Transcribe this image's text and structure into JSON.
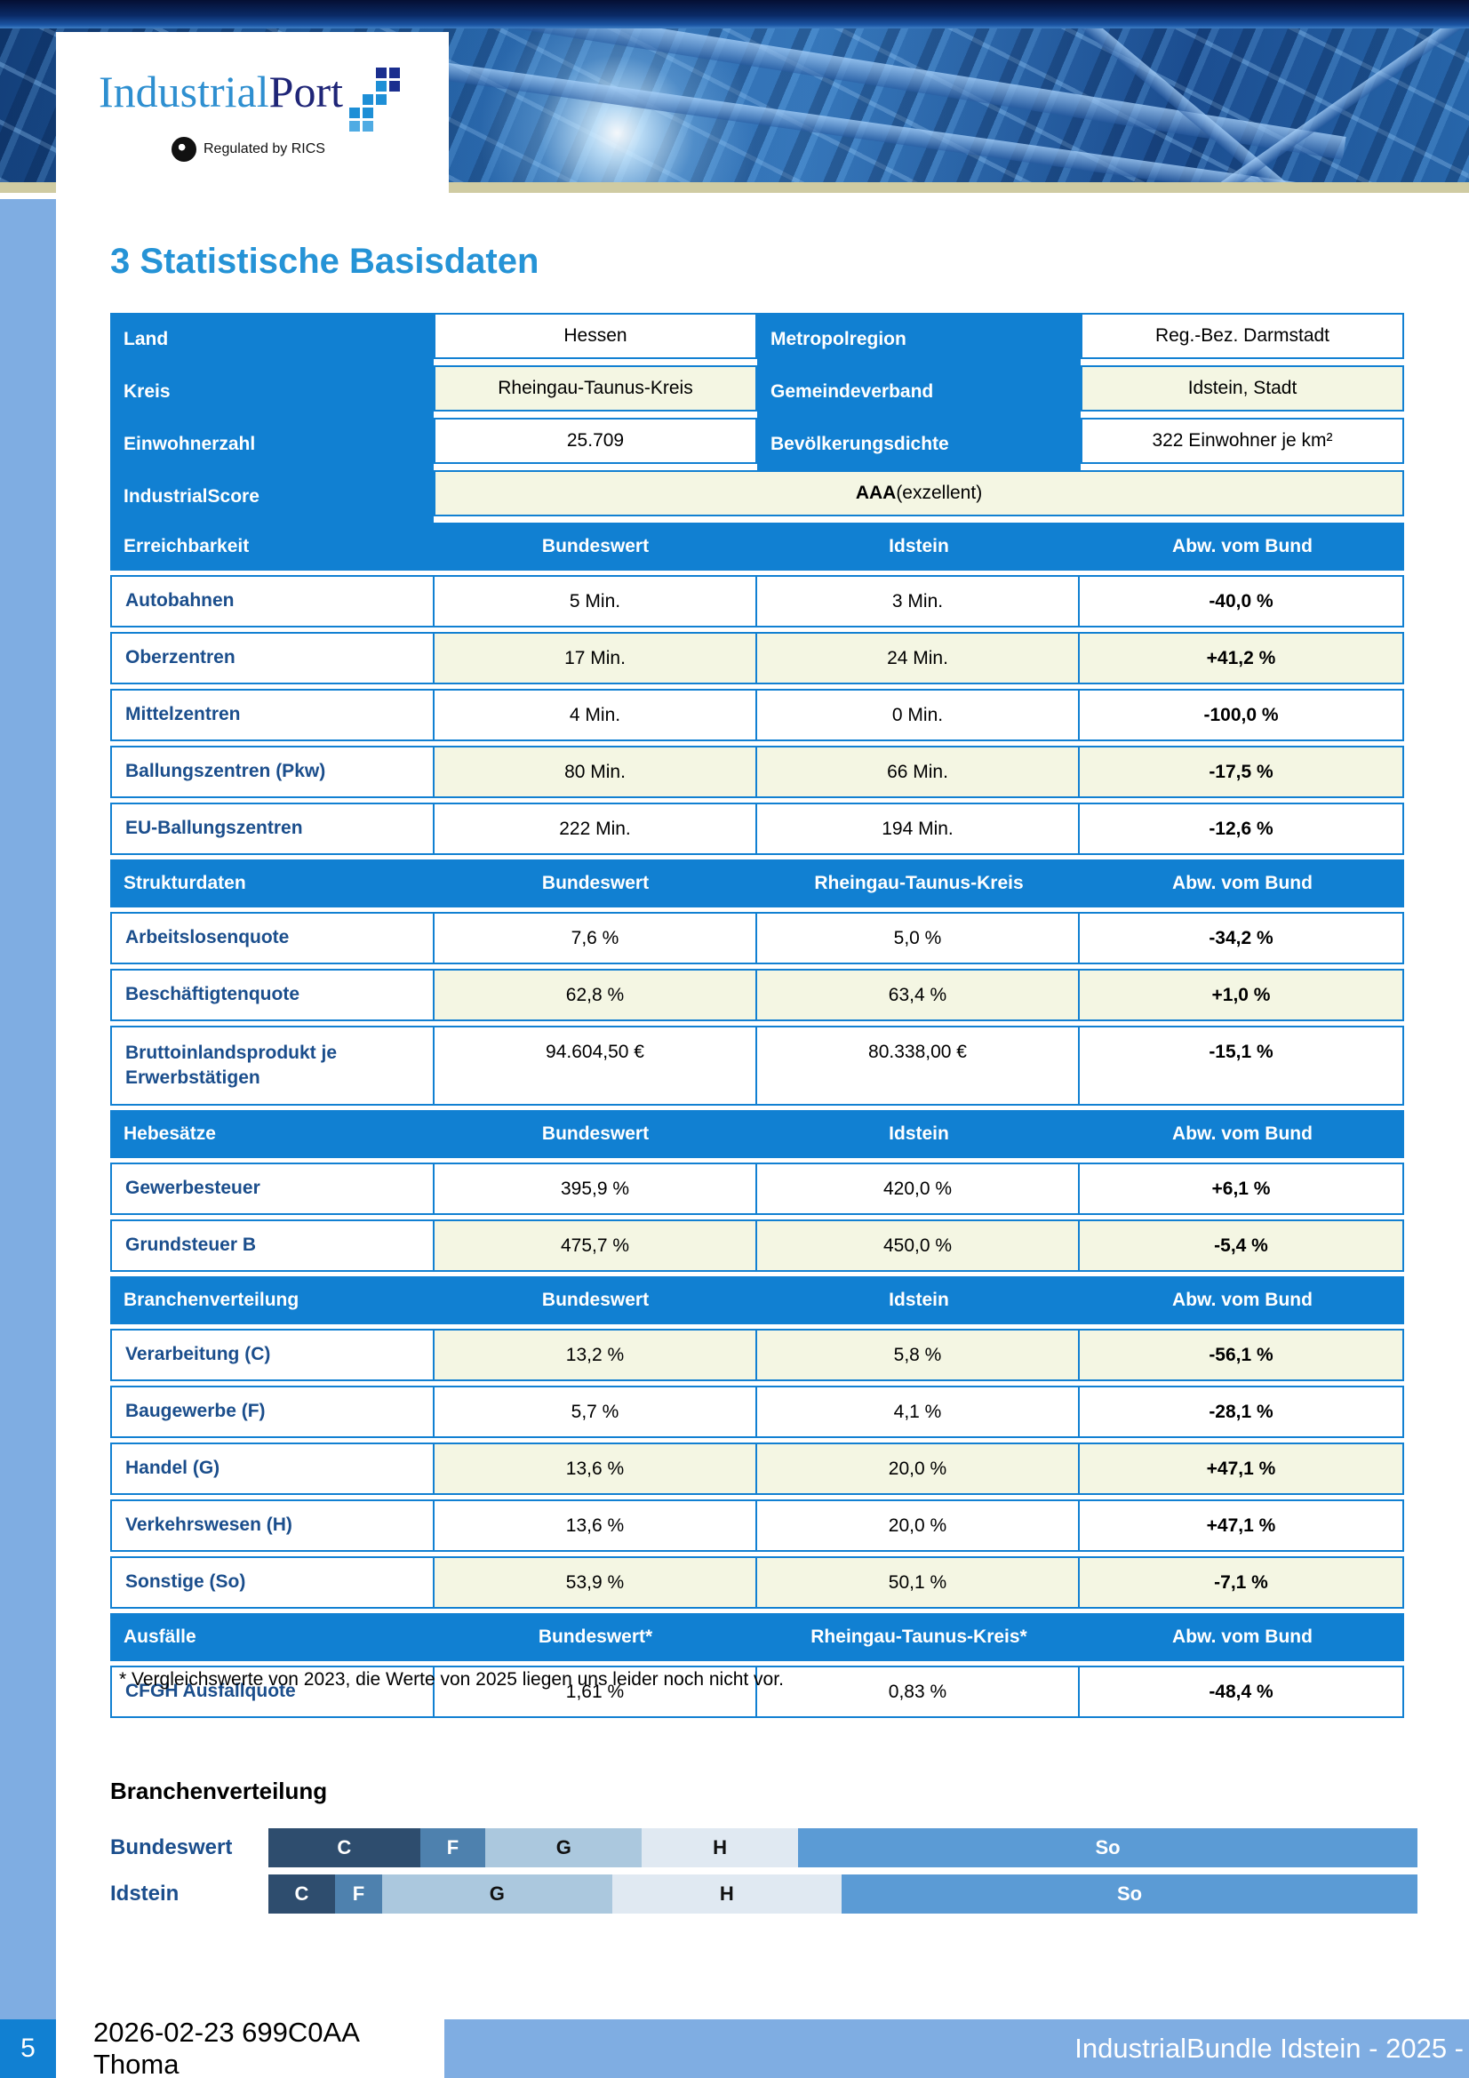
{
  "header": {
    "logo_part1": "Industrial",
    "logo_part2": "Port",
    "rics_text": "Regulated by RICS"
  },
  "page_title": "3 Statistische Basisdaten",
  "colors": {
    "table_blue": "#1180d2",
    "shaded_row": "#f4f6e3",
    "label_navy": "#1b4e8c",
    "title_blue": "#2593d6",
    "positive_green": "#0e9014",
    "negative_red": "#ee1010",
    "sidebar_blue": "#7fade2",
    "tan_strip": "#cfcba2"
  },
  "info_rows": [
    {
      "l1": "Land",
      "v1": "Hessen",
      "l2": "Metropolregion",
      "v2": "Reg.-Bez. Darmstadt",
      "shaded": false
    },
    {
      "l1": "Kreis",
      "v1": "Rheingau-Taunus-Kreis",
      "l2": "Gemeindeverband",
      "v2": "Idstein, Stadt",
      "shaded": true
    },
    {
      "l1": "Einwohnerzahl",
      "v1": "25.709",
      "l2": "Bevölkerungsdichte",
      "v2": "322 Einwohner je km²",
      "shaded": false
    }
  ],
  "score_row": {
    "label": "IndustrialScore",
    "value_bold": "AAA",
    "value_rest": " (exzellent)",
    "shaded": true
  },
  "sections": [
    {
      "title": "Erreichbarkeit",
      "col1": "Bundeswert",
      "col2": "Idstein",
      "col3": "Abw. vom Bund",
      "rows": [
        {
          "label": "Autobahnen",
          "v1": "5 Min.",
          "v2": "3 Min.",
          "dev": "-40,0 %",
          "dev_color": "green",
          "shaded": false
        },
        {
          "label": "Oberzentren",
          "v1": "17 Min.",
          "v2": "24 Min.",
          "dev": "+41,2 %",
          "dev_color": "red",
          "shaded": true
        },
        {
          "label": "Mittelzentren",
          "v1": "4 Min.",
          "v2": "0 Min.",
          "dev": "-100,0 %",
          "dev_color": "green",
          "shaded": false
        },
        {
          "label": "Ballungszentren (Pkw)",
          "v1": "80 Min.",
          "v2": "66 Min.",
          "dev": "-17,5 %",
          "dev_color": "green",
          "shaded": true
        },
        {
          "label": "EU-Ballungszentren",
          "v1": "222 Min.",
          "v2": "194 Min.",
          "dev": "-12,6 %",
          "dev_color": "green",
          "shaded": false
        }
      ]
    },
    {
      "title": "Strukturdaten",
      "col1": "Bundeswert",
      "col2": "Rheingau-Taunus-Kreis",
      "col3": "Abw. vom Bund",
      "rows": [
        {
          "label": "Arbeitslosenquote",
          "v1": "7,6 %",
          "v2": "5,0 %",
          "dev": "-34,2 %",
          "dev_color": "green",
          "shaded": false
        },
        {
          "label": "Beschäftigtenquote",
          "v1": "62,8 %",
          "v2": "63,4 %",
          "dev": "+1,0 %",
          "dev_color": "green",
          "shaded": true
        },
        {
          "label": "Bruttoinlandsprodukt je Erwerbstätigen",
          "v1": "94.604,50 €",
          "v2": "80.338,00 €",
          "dev": "-15,1 %",
          "dev_color": "red",
          "shaded": false,
          "tall": true
        }
      ]
    },
    {
      "title": "Hebesätze",
      "col1": "Bundeswert",
      "col2": "Idstein",
      "col3": "Abw. vom Bund",
      "rows": [
        {
          "label": "Gewerbesteuer",
          "v1": "395,9 %",
          "v2": "420,0 %",
          "dev": "+6,1 %",
          "dev_color": "red",
          "shaded": false
        },
        {
          "label": "Grundsteuer B",
          "v1": "475,7 %",
          "v2": "450,0 %",
          "dev": "-5,4 %",
          "dev_color": "green",
          "shaded": true
        }
      ]
    },
    {
      "title": "Branchenverteilung",
      "col1": "Bundeswert",
      "col2": "Idstein",
      "col3": "Abw. vom Bund",
      "rows": [
        {
          "label": "Verarbeitung (C)",
          "v1": "13,2 %",
          "v2": "5,8 %",
          "dev": "-56,1 %",
          "dev_color": "red",
          "shaded": true
        },
        {
          "label": "Baugewerbe (F)",
          "v1": "5,7 %",
          "v2": "4,1 %",
          "dev": "-28,1 %",
          "dev_color": "red",
          "shaded": false
        },
        {
          "label": "Handel (G)",
          "v1": "13,6 %",
          "v2": "20,0 %",
          "dev": "+47,1 %",
          "dev_color": "green",
          "shaded": true
        },
        {
          "label": "Verkehrswesen (H)",
          "v1": "13,6 %",
          "v2": "20,0 %",
          "dev": "+47,1 %",
          "dev_color": "green",
          "shaded": false
        },
        {
          "label": "Sonstige (So)",
          "v1": "53,9 %",
          "v2": "50,1 %",
          "dev": "-7,1 %",
          "dev_color": "red",
          "shaded": true
        }
      ]
    },
    {
      "title": "Ausfälle",
      "col1": "Bundeswert*",
      "col2": "Rheingau-Taunus-Kreis*",
      "col3": "Abw. vom Bund",
      "rows": [
        {
          "label": "CFGH Ausfallquote",
          "v1": "1,61 %",
          "v2": "0,83 %",
          "dev": "-48,4 %",
          "dev_color": "green",
          "shaded": false
        }
      ]
    }
  ],
  "footnote": "* Vergleichswerte von 2023, die Werte von 2025 liegen uns leider noch nicht vor.",
  "chart_data": {
    "type": "bar",
    "variant": "horizontal-stacked",
    "title": "Branchenverteilung",
    "categories": [
      "Bundeswert",
      "Idstein"
    ],
    "segments": [
      "C",
      "F",
      "G",
      "H",
      "So"
    ],
    "series": [
      {
        "name": "Bundeswert",
        "values": [
          13.2,
          5.7,
          13.6,
          13.6,
          53.9
        ]
      },
      {
        "name": "Idstein",
        "values": [
          5.8,
          4.1,
          20.0,
          20.0,
          50.1
        ]
      }
    ],
    "unit": "%",
    "x_range": [
      0,
      100
    ],
    "grid": false,
    "legend": "labels-inside-segments",
    "segment_colors": [
      "#2e4d6e",
      "#4e81ae",
      "#abc8de",
      "#e0e9f2",
      "#5b9bd5"
    ],
    "segment_label_colors": [
      "#ffffff",
      "#ffffff",
      "#111111",
      "#111111",
      "#ffffff"
    ]
  },
  "footer": {
    "page_number": "5",
    "document_id": "2026-02-23 699C0AA Thoma",
    "right_text": "IndustrialBundle Idstein - 2025 -"
  },
  "logo_icon": {
    "name": "pixel-grid-icon",
    "squares": [
      {
        "c": 3,
        "r": 1,
        "color": "#1b2f8f"
      },
      {
        "c": 4,
        "r": 1,
        "color": "#1b2f8f"
      },
      {
        "c": 3,
        "r": 2,
        "color": "#1e8fd6"
      },
      {
        "c": 4,
        "r": 2,
        "color": "#1b2f8f"
      },
      {
        "c": 2,
        "r": 3,
        "color": "#1e8fd6"
      },
      {
        "c": 3,
        "r": 3,
        "color": "#1e8fd6"
      },
      {
        "c": 1,
        "r": 4,
        "color": "#1e8fd6"
      },
      {
        "c": 2,
        "r": 4,
        "color": "#1e8fd6"
      },
      {
        "c": 1,
        "r": 5,
        "color": "#4fabe3"
      },
      {
        "c": 2,
        "r": 5,
        "color": "#4fabe3"
      }
    ]
  }
}
